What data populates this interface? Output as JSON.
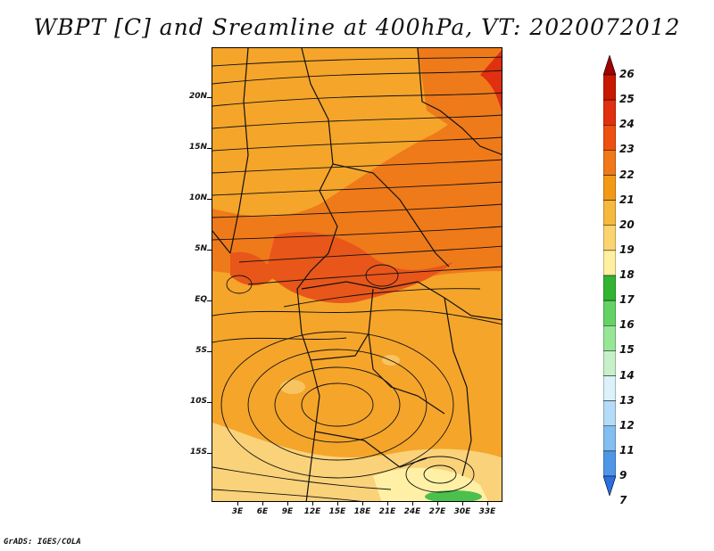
{
  "title": "WBPT [C] and Sreamline at 400hPa, VT: 2020072012",
  "credit": "GrADS: IGES/COLA",
  "map": {
    "lat_labels": [
      "20N",
      "15N",
      "10N",
      "5N",
      "EQ",
      "5S",
      "10S",
      "15S"
    ],
    "lat_values": [
      20,
      15,
      10,
      5,
      0,
      -5,
      -10,
      -15
    ],
    "lon_labels": [
      "3E",
      "6E",
      "9E",
      "12E",
      "15E",
      "18E",
      "21E",
      "24E",
      "27E",
      "30E",
      "33E"
    ],
    "lon_values": [
      3,
      6,
      9,
      12,
      15,
      18,
      21,
      24,
      27,
      30,
      33
    ],
    "extent": {
      "lon_min": 0.5,
      "lon_max": 34.0,
      "lat_min": -20.0,
      "lat_max": 25.0
    }
  },
  "colorbar": {
    "labels": [
      "26",
      "25",
      "24",
      "23",
      "22",
      "21",
      "20",
      "19",
      "18",
      "17",
      "16",
      "15",
      "14",
      "13",
      "12",
      "11",
      "9",
      "7"
    ],
    "colors": [
      "#a00000",
      "#c81800",
      "#e03010",
      "#ee5010",
      "#f07818",
      "#f29a18",
      "#f7b840",
      "#fbd470",
      "#fff0a0",
      "#32b432",
      "#64d264",
      "#96e696",
      "#c8f0c8",
      "#dcf2fa",
      "#b4dcf8",
      "#82bef0",
      "#5096e6",
      "#2a6ee0"
    ]
  },
  "field_colors": {
    "mid": "#f5a52a",
    "warm": "#ef7a1a",
    "hot": "#e8561a",
    "cool": "#fad27a",
    "pale": "#fff0a6",
    "green": "#4cc04c"
  }
}
